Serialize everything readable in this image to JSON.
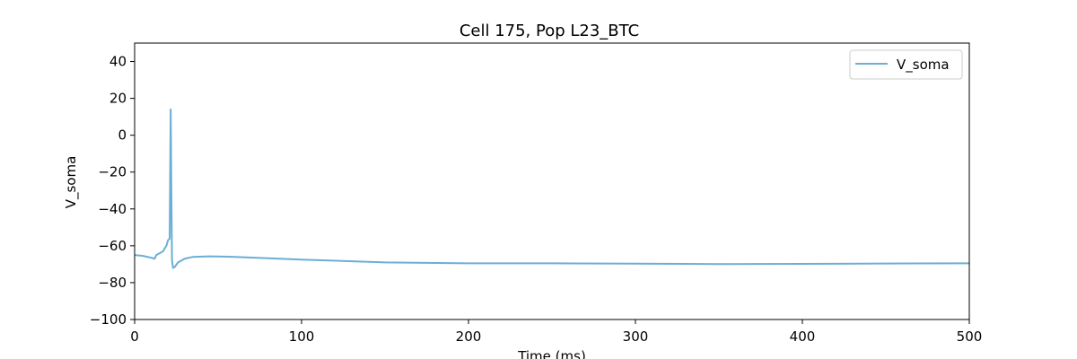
{
  "chart_data": {
    "type": "line",
    "title": "Cell 175, Pop L23_BTC",
    "xlabel": "Time (ms)",
    "ylabel": "V_soma",
    "xlim": [
      0,
      500
    ],
    "ylim": [
      -100,
      50
    ],
    "xticks": [
      0,
      100,
      200,
      300,
      400,
      500
    ],
    "yticks": [
      -100,
      -80,
      -60,
      -40,
      -20,
      0,
      20,
      40
    ],
    "grid": false,
    "legend_position": "top-right",
    "series": [
      {
        "name": "V_soma",
        "color": "#6baed6",
        "x": [
          0,
          5,
          10,
          12,
          13,
          15,
          17,
          19,
          20,
          21,
          21.6,
          22,
          22.4,
          23,
          24,
          26,
          30,
          35,
          45,
          60,
          100,
          150,
          200,
          250,
          300,
          350,
          400,
          450,
          500
        ],
        "y": [
          -65,
          -65.5,
          -66.5,
          -67,
          -65,
          -64,
          -63,
          -60,
          -57,
          -56,
          14,
          -30,
          -68,
          -72,
          -71.5,
          -69,
          -67,
          -66,
          -65.7,
          -66,
          -67.5,
          -69,
          -69.5,
          -69.5,
          -69.7,
          -69.9,
          -69.8,
          -69.6,
          -69.5
        ]
      }
    ]
  }
}
